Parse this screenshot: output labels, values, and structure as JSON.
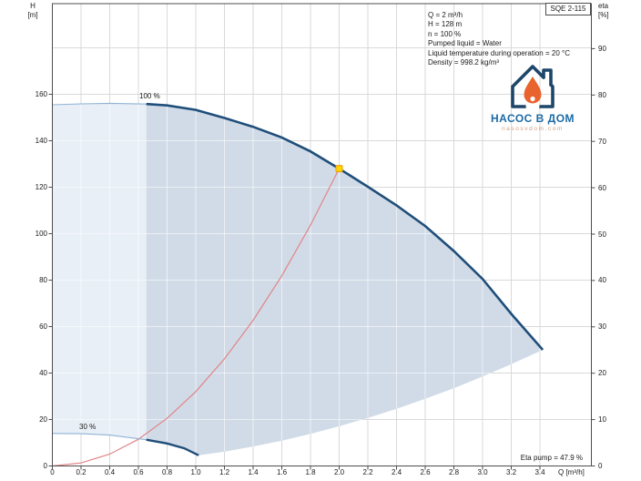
{
  "model_box": {
    "label": "SQE 2-115"
  },
  "info_box": {
    "lines": [
      "Q = 2 m³/h",
      "H = 128 m",
      "n = 100 %",
      "Pumped liquid = Water",
      "Liquid temperature during operation = 20 °C",
      "Density = 998.2 kg/m³"
    ]
  },
  "logo": {
    "title": "НАСОС В ДОМ",
    "subtitle": "nasosvdom.com"
  },
  "annotations": {
    "speed_100": "100 %",
    "speed_30": "30 %",
    "eta_pump": "Eta pump = 47.9 %"
  },
  "axes": {
    "left": {
      "name": "H",
      "unit": "[m]",
      "tick_labels": [
        "0",
        "20",
        "40",
        "60",
        "80",
        "100",
        "120",
        "140",
        "160"
      ],
      "tick_values": [
        0,
        20,
        40,
        60,
        80,
        100,
        120,
        140,
        160
      ]
    },
    "right": {
      "name": "eta",
      "unit": "[%]",
      "tick_labels": [
        "0",
        "10",
        "20",
        "30",
        "40",
        "50",
        "60",
        "70",
        "80",
        "90"
      ],
      "tick_values": [
        0,
        10,
        20,
        30,
        40,
        50,
        60,
        70,
        80,
        90
      ]
    },
    "bottom": {
      "unit_label": "Q [m³/h]",
      "tick_labels": [
        "0",
        "0.2",
        "0.4",
        "0.6",
        "0.8",
        "1.0",
        "1.2",
        "1.4",
        "1.6",
        "1.8",
        "2.0",
        "2.2",
        "2.4",
        "2.6",
        "2.8",
        "3.0",
        "3.2",
        "3.4"
      ],
      "tick_values": [
        0,
        0.2,
        0.4,
        0.6,
        0.8,
        1.0,
        1.2,
        1.4,
        1.6,
        1.8,
        2.0,
        2.2,
        2.4,
        2.6,
        2.8,
        3.0,
        3.2,
        3.4
      ]
    }
  },
  "chart_data": {
    "type": "line",
    "title": "SQE 2-115 pump performance curve",
    "xlabel": "Q [m³/h]",
    "ylabel_left": "H [m]",
    "ylabel_right": "eta [%]",
    "xlim": [
      0,
      3.76
    ],
    "ylim_left": [
      0,
      199
    ],
    "ylim_right": [
      0,
      99.7
    ],
    "grid": true,
    "series": [
      {
        "name": "pump_curve_100pct",
        "points": [
          [
            0,
            155.5
          ],
          [
            0.2,
            155.9
          ],
          [
            0.4,
            156.1
          ],
          [
            0.655,
            155.8
          ],
          [
            0.8,
            155.2
          ],
          [
            1.0,
            153.3
          ],
          [
            1.2,
            149.8
          ],
          [
            1.4,
            146.0
          ],
          [
            1.6,
            141.4
          ],
          [
            1.8,
            135.4
          ],
          [
            2.0,
            128
          ],
          [
            2.2,
            120.2
          ],
          [
            2.4,
            112.2
          ],
          [
            2.6,
            103.3
          ],
          [
            2.8,
            92.5
          ],
          [
            3.0,
            80.5
          ],
          [
            3.2,
            65.5
          ],
          [
            3.42,
            50
          ]
        ]
      },
      {
        "name": "pump_curve_30pct",
        "points": [
          [
            0,
            14
          ],
          [
            0.2,
            13.9
          ],
          [
            0.4,
            13.3
          ],
          [
            0.655,
            11.3
          ],
          [
            0.8,
            9.7
          ],
          [
            0.92,
            7.6
          ],
          [
            1.02,
            4.6
          ]
        ]
      },
      {
        "name": "duty_parabola_red",
        "points": [
          [
            0,
            0
          ],
          [
            0.2,
            1.3
          ],
          [
            0.4,
            5.1
          ],
          [
            0.6,
            11.5
          ],
          [
            0.8,
            20.5
          ],
          [
            1.0,
            32
          ],
          [
            1.2,
            46.1
          ],
          [
            1.4,
            62.7
          ],
          [
            1.6,
            81.9
          ],
          [
            1.8,
            103.7
          ],
          [
            2.0,
            128
          ]
        ]
      },
      {
        "name": "max_flow_boundary",
        "points": [
          [
            3.42,
            50
          ],
          [
            3.2,
            43.8
          ],
          [
            3.0,
            38.5
          ],
          [
            2.8,
            33.5
          ],
          [
            2.6,
            28.9
          ],
          [
            2.4,
            24.6
          ],
          [
            2.2,
            20.7
          ],
          [
            2.0,
            17.1
          ],
          [
            1.8,
            13.8
          ],
          [
            1.6,
            10.9
          ],
          [
            1.4,
            8.4
          ],
          [
            1.2,
            6.2
          ],
          [
            1.02,
            4.6
          ]
        ]
      }
    ],
    "duty_point": {
      "q": 2.0,
      "h": 128
    },
    "operating_range": {
      "min_q": 0.655
    },
    "colors": {
      "curve_dark": "#1f4e7a",
      "curve_thin": "#8fb3d4",
      "red_curve": "#e08486",
      "fill_light": "#e9eff7",
      "fill_dark": "#d1dbe7",
      "grid": "#d9d9d9",
      "frame": "#4d4d4d",
      "marker_fill": "#ffd400",
      "marker_stroke": "#e89b0c",
      "logo_blue": "#1c6ba6",
      "logo_outline": "#1d4669",
      "logo_flame": "#e8632e",
      "logo_subtitle": "#cf9f7e"
    }
  }
}
